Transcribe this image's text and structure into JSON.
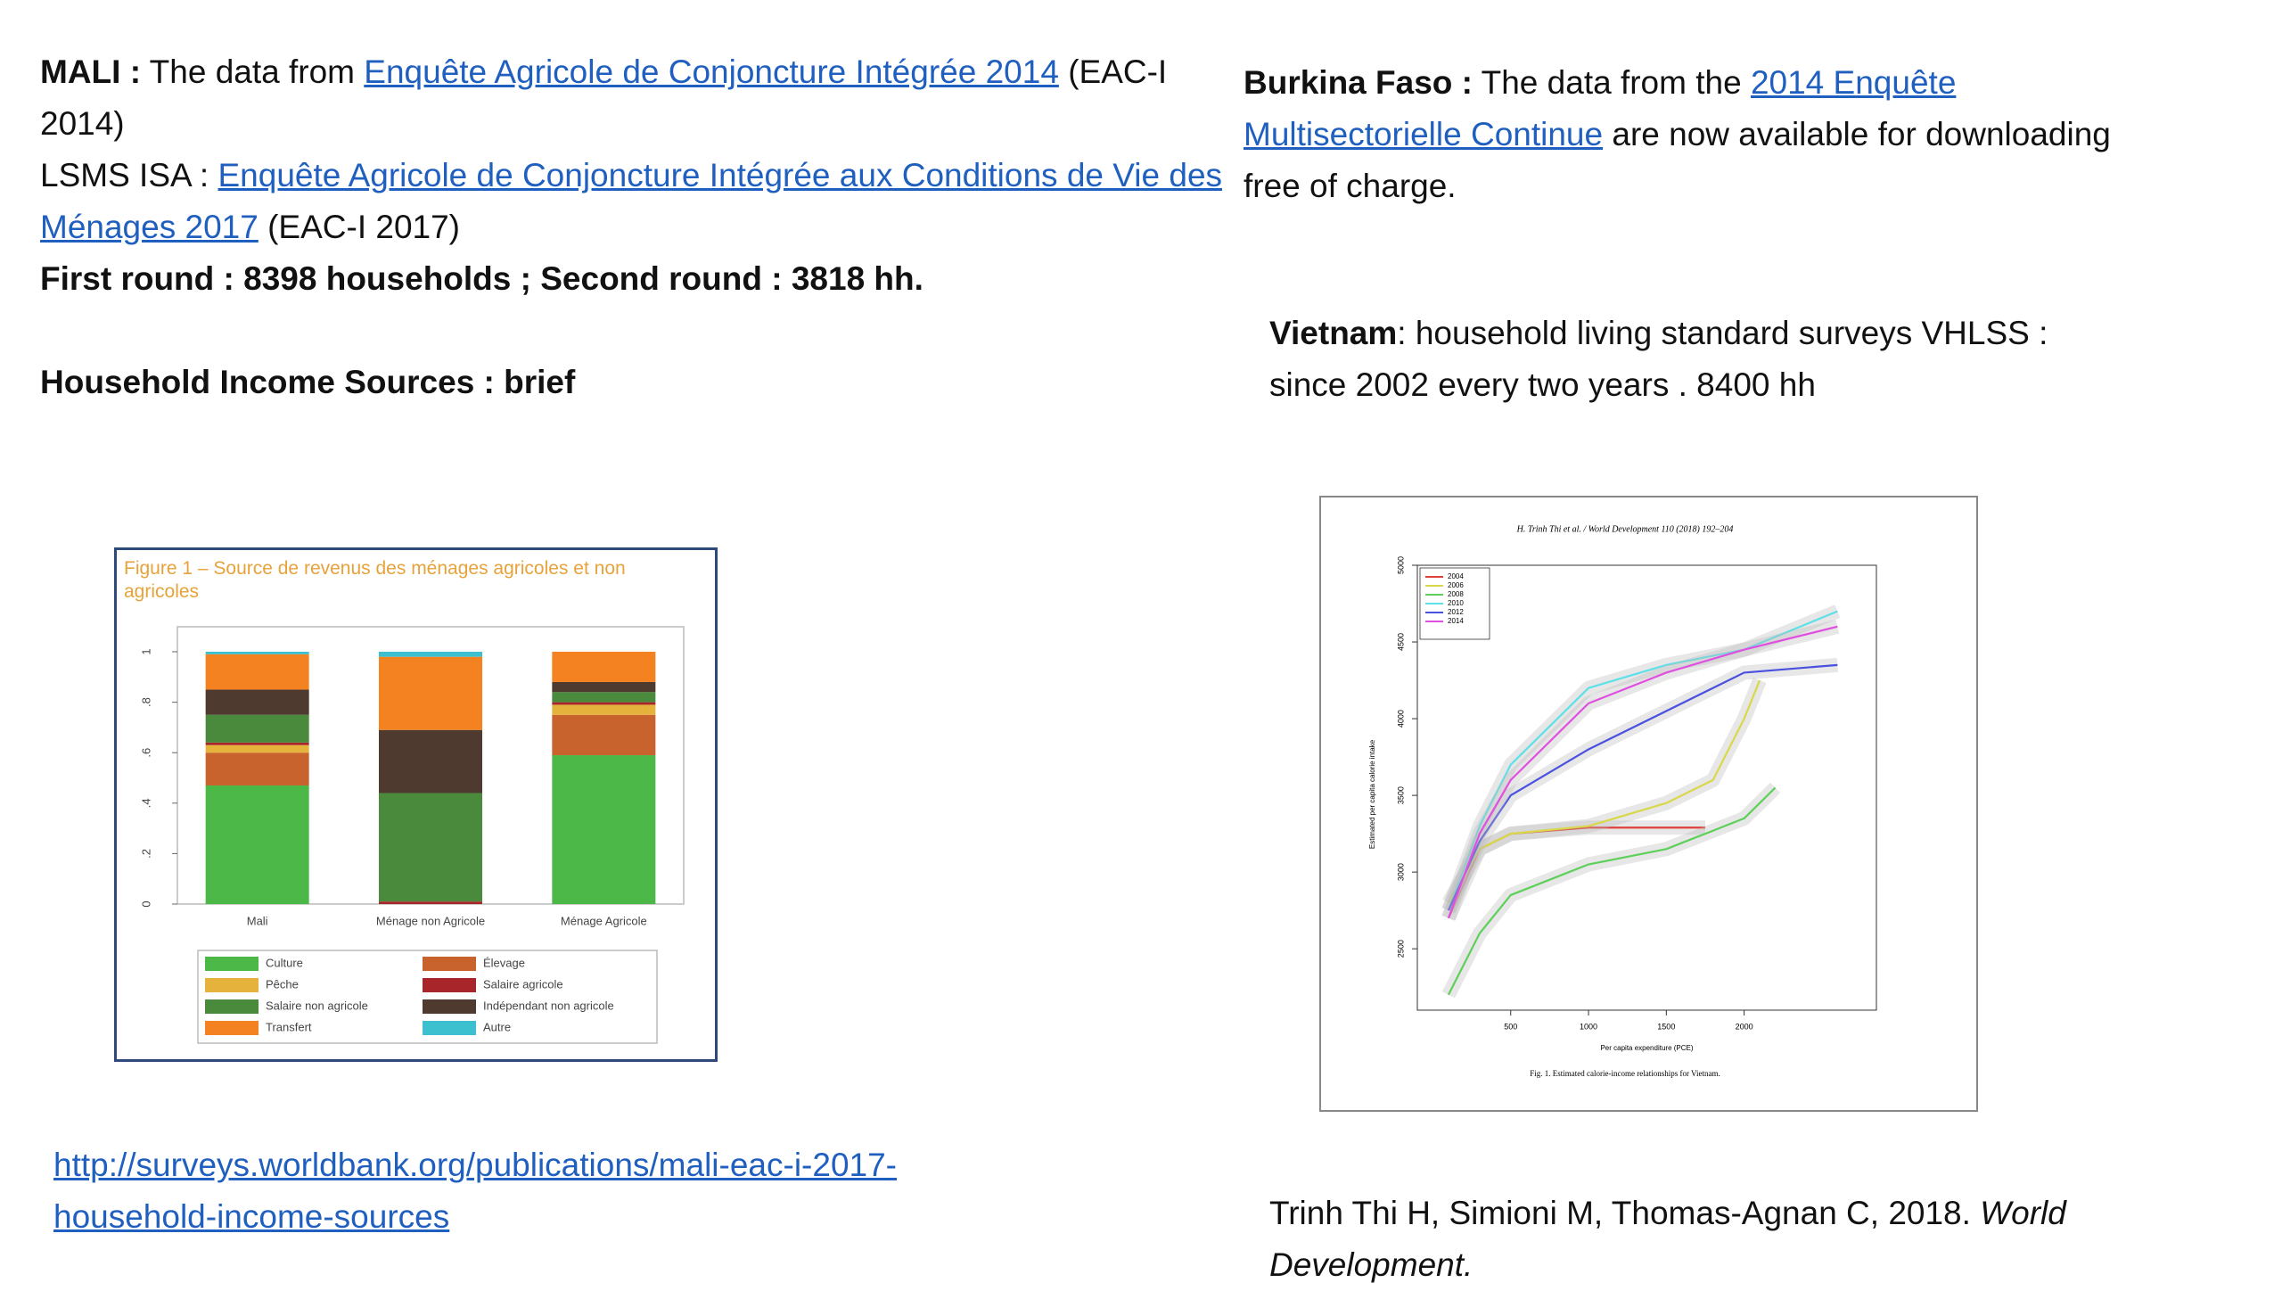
{
  "mali": {
    "heading": "MALI :",
    "intro": "The data from",
    "link": "Enquête Agricole de Conjoncture Intégrée 2014",
    "suffix": "(EAC-I 2014)"
  },
  "lsms": {
    "heading": "LSMS ISA :",
    "link": "Enquête Agricole de Conjoncture Intégrée aux Conditions de Vie des Ménages 2017",
    "suffix": "(EAC-I 2017)"
  },
  "rounds": "First round : 8398 households ; Second round : 3818 hh.",
  "income_heading": "Household Income Sources : brief",
  "mali_url": "http://surveys.worldbank.org/publications/mali-eac-i-2017-household-income-sources",
  "burkina": {
    "heading": "Burkina Faso :",
    "intro": "The data from the",
    "link": "2014 Enquête Multisectorielle Continue",
    "suffix": "are now available for downloading free of charge."
  },
  "vietnam": {
    "heading": "Vietnam",
    "text": ": household living standard surveys VHLSS : since 2002 every two years . 8400 hh"
  },
  "citation": {
    "authors": "Trinh Thi H, Simioni M, Thomas-Agnan C, 2018.",
    "journal": "World Development."
  },
  "figures": [
    {
      "type": "bar",
      "stacked": true,
      "title": "Figure 1 – Source de revenus des ménages agricoles et non agricoles",
      "categories": [
        "Mali",
        "Ménage non Agricole",
        "Ménage Agricole"
      ],
      "ylim": [
        0,
        1
      ],
      "yticks": [
        0,
        {
          "value": 0.2,
          "label": ".2"
        },
        {
          "value": 0.4,
          "label": ".4"
        },
        {
          "value": 0.6,
          "label": ".6"
        },
        {
          "value": 0.8,
          "label": ".8"
        },
        1
      ],
      "series": [
        {
          "name": "Culture",
          "color": "#4cb848",
          "values": [
            0.47,
            0,
            0.59
          ]
        },
        {
          "name": "Élevage",
          "color": "#c8632e",
          "values": [
            0.13,
            0,
            0.16
          ]
        },
        {
          "name": "Pêche",
          "color": "#e5b23c",
          "values": [
            0.03,
            0,
            0.04
          ]
        },
        {
          "name": "Salaire agricole",
          "color": "#a8262a",
          "values": [
            0.01,
            0.01,
            0.01
          ]
        },
        {
          "name": "Salaire non agricole",
          "color": "#4a8a3c",
          "values": [
            0.11,
            0.43,
            0.04
          ]
        },
        {
          "name": "Indépendant non agricole",
          "color": "#4e3a2e",
          "values": [
            0.1,
            0.25,
            0.04
          ]
        },
        {
          "name": "Transfert",
          "color": "#f58220",
          "values": [
            0.14,
            0.29,
            0.12
          ]
        },
        {
          "name": "Autre",
          "color": "#3cc0d0",
          "values": [
            0.01,
            0.02,
            0
          ]
        }
      ]
    },
    {
      "type": "line",
      "header": "H. Trinh Thi et al. / World Development 110 (2018) 192–204",
      "x_label": "Per capita expenditure (PCE)",
      "y_label": "Estimated per capita calorie intake",
      "caption": "Fig. 1. Estimated calorie-income relationships for Vietnam.",
      "xlim": [
        -100,
        2850
      ],
      "xticks": [
        500,
        1000,
        1500,
        2000
      ],
      "ylim": [
        2100,
        5000
      ],
      "yticks": [
        2500,
        3000,
        3500,
        4000,
        4500,
        5000
      ],
      "series": [
        {
          "name": "2004",
          "color": "#e0403a",
          "x": [
            100,
            300,
            500,
            1000,
            1500,
            1750
          ],
          "values": [
            2700,
            3150,
            3250,
            3290,
            3290,
            3290
          ]
        },
        {
          "name": "2006",
          "color": "#d8d84a",
          "x": [
            100,
            300,
            500,
            1000,
            1500,
            1800,
            2000,
            2100
          ],
          "values": [
            2800,
            3150,
            3250,
            3300,
            3450,
            3600,
            4000,
            4250
          ]
        },
        {
          "name": "2008",
          "color": "#5ed05a",
          "x": [
            100,
            300,
            500,
            1000,
            1500,
            2000,
            2200
          ],
          "values": [
            2200,
            2600,
            2850,
            3050,
            3150,
            3350,
            3550
          ]
        },
        {
          "name": "2010",
          "color": "#5ee0e8",
          "x": [
            100,
            300,
            500,
            1000,
            1500,
            2000,
            2600
          ],
          "values": [
            2750,
            3300,
            3700,
            4200,
            4350,
            4450,
            4700
          ]
        },
        {
          "name": "2012",
          "color": "#4a50e0",
          "x": [
            100,
            300,
            500,
            1000,
            1500,
            2000,
            2600
          ],
          "values": [
            2750,
            3200,
            3500,
            3800,
            4050,
            4300,
            4350
          ]
        },
        {
          "name": "2014",
          "color": "#e050e0",
          "x": [
            100,
            300,
            500,
            1000,
            1500,
            2000,
            2600
          ],
          "values": [
            2700,
            3250,
            3600,
            4100,
            4300,
            4450,
            4600
          ]
        }
      ]
    }
  ]
}
